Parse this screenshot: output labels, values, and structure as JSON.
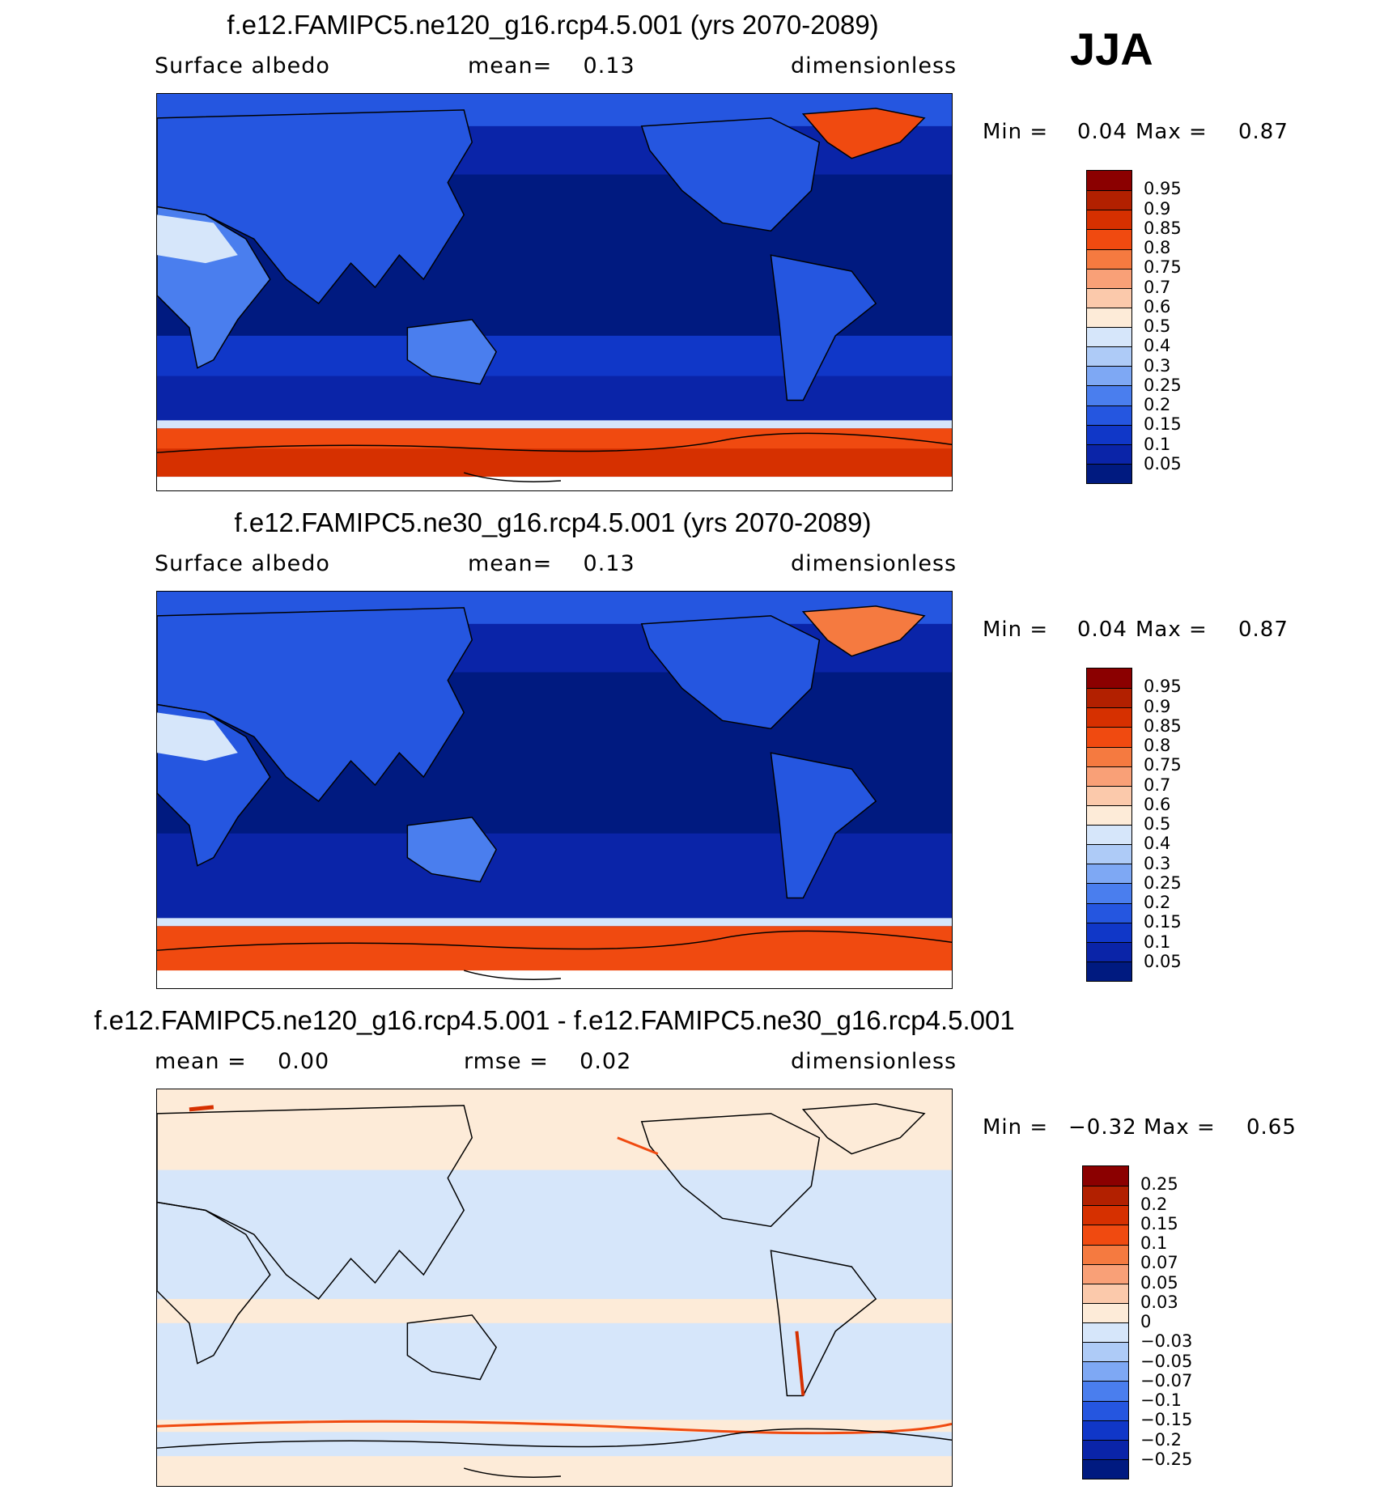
{
  "season": "JJA",
  "panels": [
    {
      "title": "f.e12.FAMIPC5.ne120_g16.rcp4.5.001 (yrs 2070-2089)",
      "sub_left": "Surface albedo",
      "sub_mid": "mean=    0.13",
      "sub_right": "dimensionless",
      "min_label": "Min =",
      "min_value": "0.04",
      "max_label": "Max =",
      "max_value": "0.87",
      "colorbar_labels": [
        "0.95",
        "0.9",
        "0.85",
        "0.8",
        "0.75",
        "0.7",
        "0.6",
        "0.5",
        "0.4",
        "0.3",
        "0.25",
        "0.2",
        "0.15",
        "0.1",
        "0.05"
      ],
      "colors": [
        "#8b0000",
        "#b22000",
        "#d63000",
        "#f04a10",
        "#f57a40",
        "#f9a077",
        "#fbc9ab",
        "#fdebd8",
        "#d6e6fa",
        "#aecbf7",
        "#7ea8f4",
        "#4a7eee",
        "#2556e0",
        "#1037c8",
        "#0a24a8",
        "#001a80"
      ]
    },
    {
      "title": "f.e12.FAMIPC5.ne30_g16.rcp4.5.001 (yrs 2070-2089)",
      "sub_left": "Surface albedo",
      "sub_mid": "mean=    0.13",
      "sub_right": "dimensionless",
      "min_label": "Min =",
      "min_value": "0.04",
      "max_label": "Max =",
      "max_value": "0.87",
      "colorbar_labels": [
        "0.95",
        "0.9",
        "0.85",
        "0.8",
        "0.75",
        "0.7",
        "0.6",
        "0.5",
        "0.4",
        "0.3",
        "0.25",
        "0.2",
        "0.15",
        "0.1",
        "0.05"
      ],
      "colors": [
        "#8b0000",
        "#b22000",
        "#d63000",
        "#f04a10",
        "#f57a40",
        "#f9a077",
        "#fbc9ab",
        "#fdebd8",
        "#d6e6fa",
        "#aecbf7",
        "#7ea8f4",
        "#4a7eee",
        "#2556e0",
        "#1037c8",
        "#0a24a8",
        "#001a80"
      ]
    },
    {
      "title": "f.e12.FAMIPC5.ne120_g16.rcp4.5.001 - f.e12.FAMIPC5.ne30_g16.rcp4.5.001",
      "sub_left": "mean =    0.00",
      "sub_mid": "rmse =    0.02",
      "sub_right": "dimensionless",
      "min_label": "Min =",
      "min_value": "−0.32",
      "max_label": "Max =",
      "max_value": "0.65",
      "colorbar_labels": [
        "0.25",
        "0.2",
        "0.15",
        "0.1",
        "0.07",
        "0.05",
        "0.03",
        "0",
        "−0.03",
        "−0.05",
        "−0.07",
        "−0.1",
        "−0.15",
        "−0.2",
        "−0.25"
      ],
      "colors": [
        "#8b0000",
        "#b22000",
        "#d63000",
        "#f04a10",
        "#f57a40",
        "#f9a077",
        "#fbc9ab",
        "#fdebd8",
        "#d6e6fa",
        "#aecbf7",
        "#7ea8f4",
        "#4a7eee",
        "#2556e0",
        "#1037c8",
        "#0a24a8",
        "#001a80"
      ]
    }
  ]
}
